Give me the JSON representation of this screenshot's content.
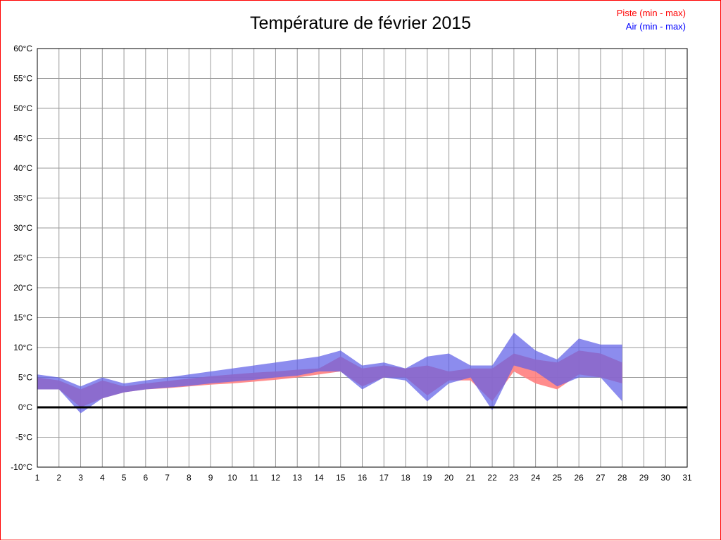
{
  "title": "Température de février 2015",
  "legend": {
    "piste_label": "Piste (min - max)",
    "air_label": "Air (min - max)",
    "piste_color": "#ff0000",
    "air_color": "#0000ff"
  },
  "chart_data": {
    "type": "area",
    "title": "Température de février 2015",
    "xlabel": "",
    "ylabel": "",
    "xlim": [
      1,
      31
    ],
    "ylim": [
      -10,
      60
    ],
    "y_tick_step": 5,
    "y_tick_suffix": "°C",
    "x_ticks": [
      1,
      2,
      3,
      4,
      5,
      6,
      7,
      8,
      9,
      10,
      11,
      12,
      13,
      14,
      15,
      16,
      17,
      18,
      19,
      20,
      21,
      22,
      23,
      24,
      25,
      26,
      27,
      28,
      29,
      30,
      31
    ],
    "grid": true,
    "grid_color": "#9a9a9a",
    "zero_line_color": "#000000",
    "legend_position": "top-right",
    "x": [
      1,
      2,
      3,
      4,
      5,
      6,
      7,
      8,
      9,
      10,
      11,
      12,
      13,
      14,
      15,
      16,
      17,
      18,
      19,
      20,
      21,
      22,
      23,
      24,
      25,
      26,
      27,
      28
    ],
    "series": [
      {
        "name": "Piste (min - max)",
        "color": "#ff8080",
        "opacity": 0.9,
        "min": [
          3,
          3,
          0,
          1.5,
          2.5,
          3,
          3.2,
          3.5,
          3.8,
          4,
          4.3,
          4.6,
          5,
          5.5,
          6,
          3.5,
          5,
          5,
          2,
          4.5,
          4.5,
          1,
          6,
          4,
          3,
          5.5,
          5,
          4
        ],
        "max": [
          5,
          4.5,
          3,
          4.5,
          3.5,
          4,
          4.4,
          4.8,
          5.2,
          5.5,
          5.8,
          6,
          6.3,
          6.5,
          8.5,
          6.5,
          7,
          6.5,
          7,
          6,
          6.5,
          6.5,
          9,
          8,
          7.5,
          9.5,
          9,
          7.5
        ]
      },
      {
        "name": "Air (min - max)",
        "color": "#5f5fe8",
        "opacity": 0.72,
        "min": [
          3,
          3,
          -1,
          1.5,
          2.5,
          3,
          3.3,
          3.6,
          4,
          4.3,
          4.6,
          5,
          5.3,
          6,
          6,
          3,
          5,
          4.5,
          1,
          4,
          5,
          -0.5,
          7,
          6,
          3.5,
          5,
          5,
          1
        ],
        "max": [
          5.5,
          5,
          3.5,
          5,
          4,
          4.5,
          5,
          5.5,
          6,
          6.5,
          7,
          7.5,
          8,
          8.5,
          9.5,
          7,
          7.5,
          6.5,
          8.5,
          9,
          7,
          7,
          12.5,
          9.5,
          8,
          11.5,
          10.5,
          10.5
        ]
      }
    ]
  }
}
